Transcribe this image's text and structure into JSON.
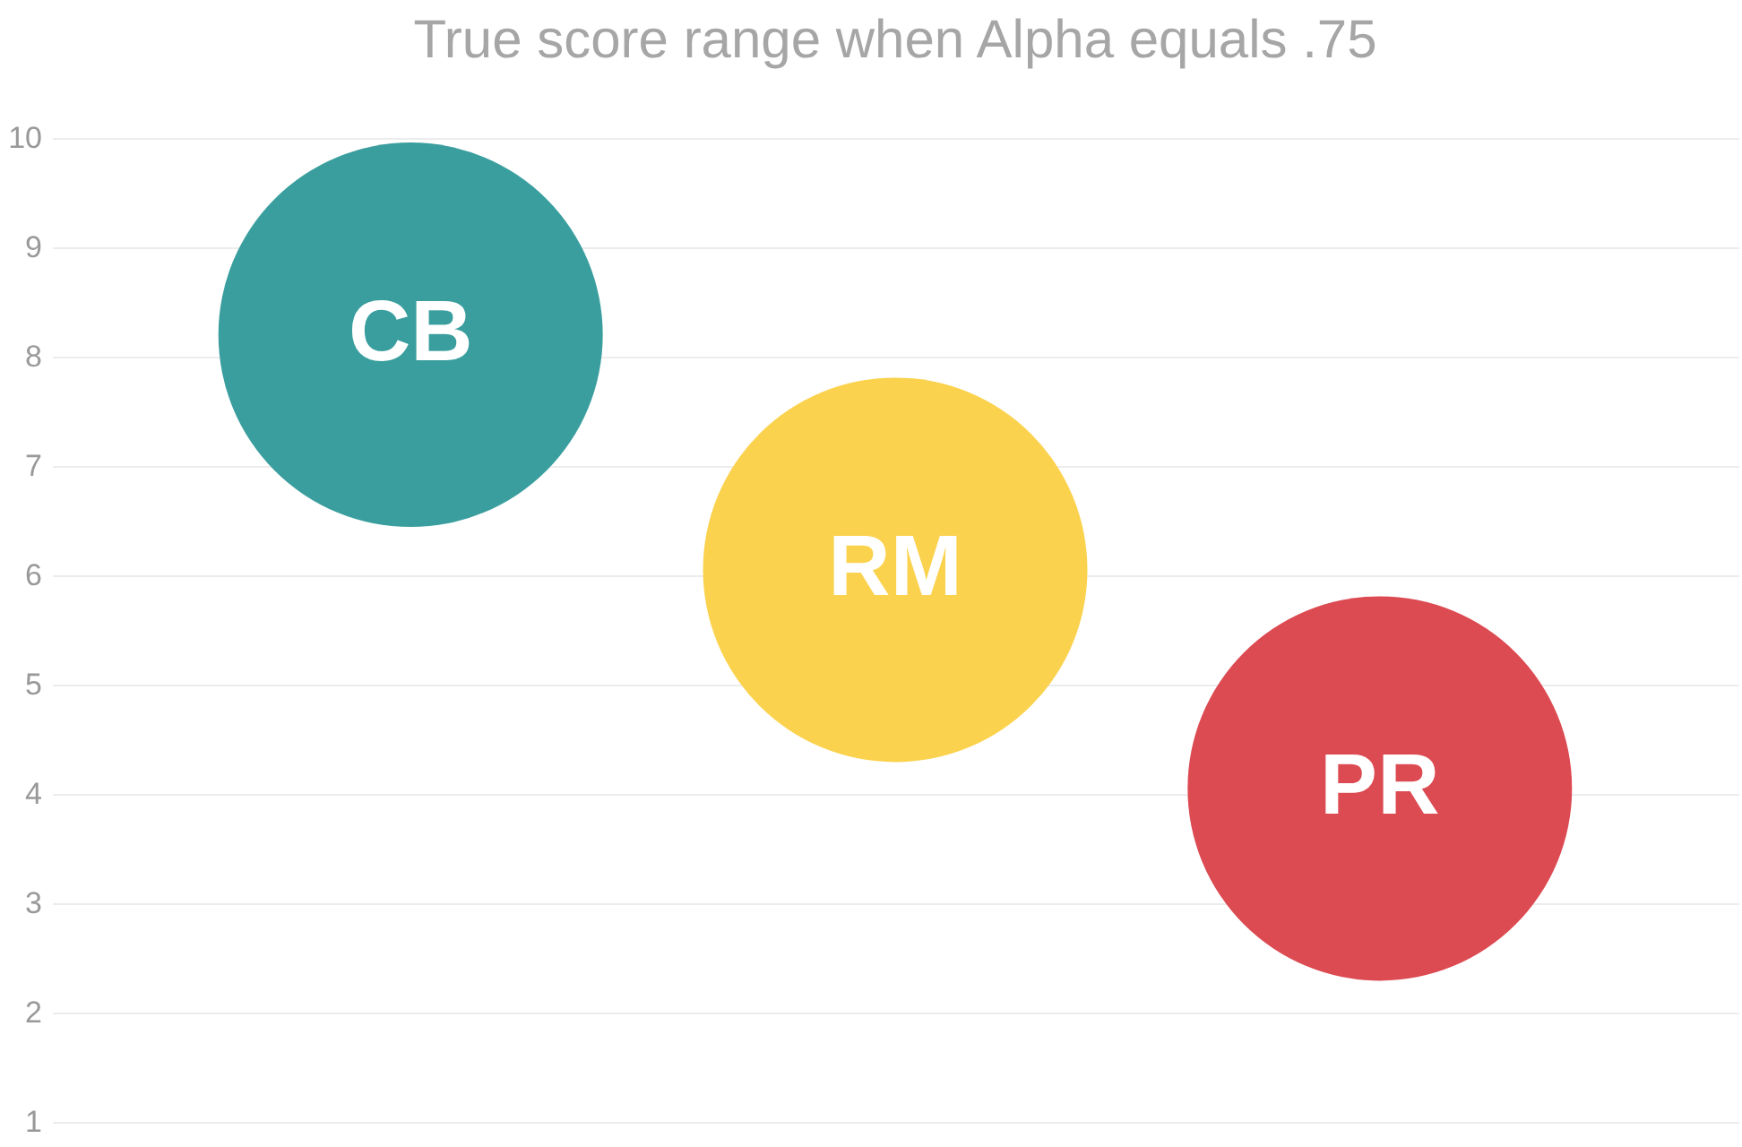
{
  "chart_data": {
    "type": "bubble",
    "title": "True score range when Alpha equals .75",
    "categories": [
      null,
      null,
      null
    ],
    "series": [
      {
        "name": "CB",
        "color": "#3a9e9e",
        "values": [
          8.2,
          null,
          null
        ],
        "sizes": [
          1,
          null,
          null
        ]
      },
      {
        "name": "RM",
        "color": "#fbd24e",
        "values": [
          null,
          6.05,
          null
        ],
        "sizes": [
          null,
          1,
          null
        ]
      },
      {
        "name": "PR",
        "color": "#dc4a52",
        "values": [
          null,
          null,
          4.05
        ],
        "sizes": [
          null,
          null,
          1
        ]
      }
    ],
    "ylim": [
      1,
      10
    ],
    "yticks": [
      1,
      2,
      3,
      4,
      5,
      6,
      7,
      8,
      9,
      10
    ],
    "grid": "y",
    "legend": false
  }
}
